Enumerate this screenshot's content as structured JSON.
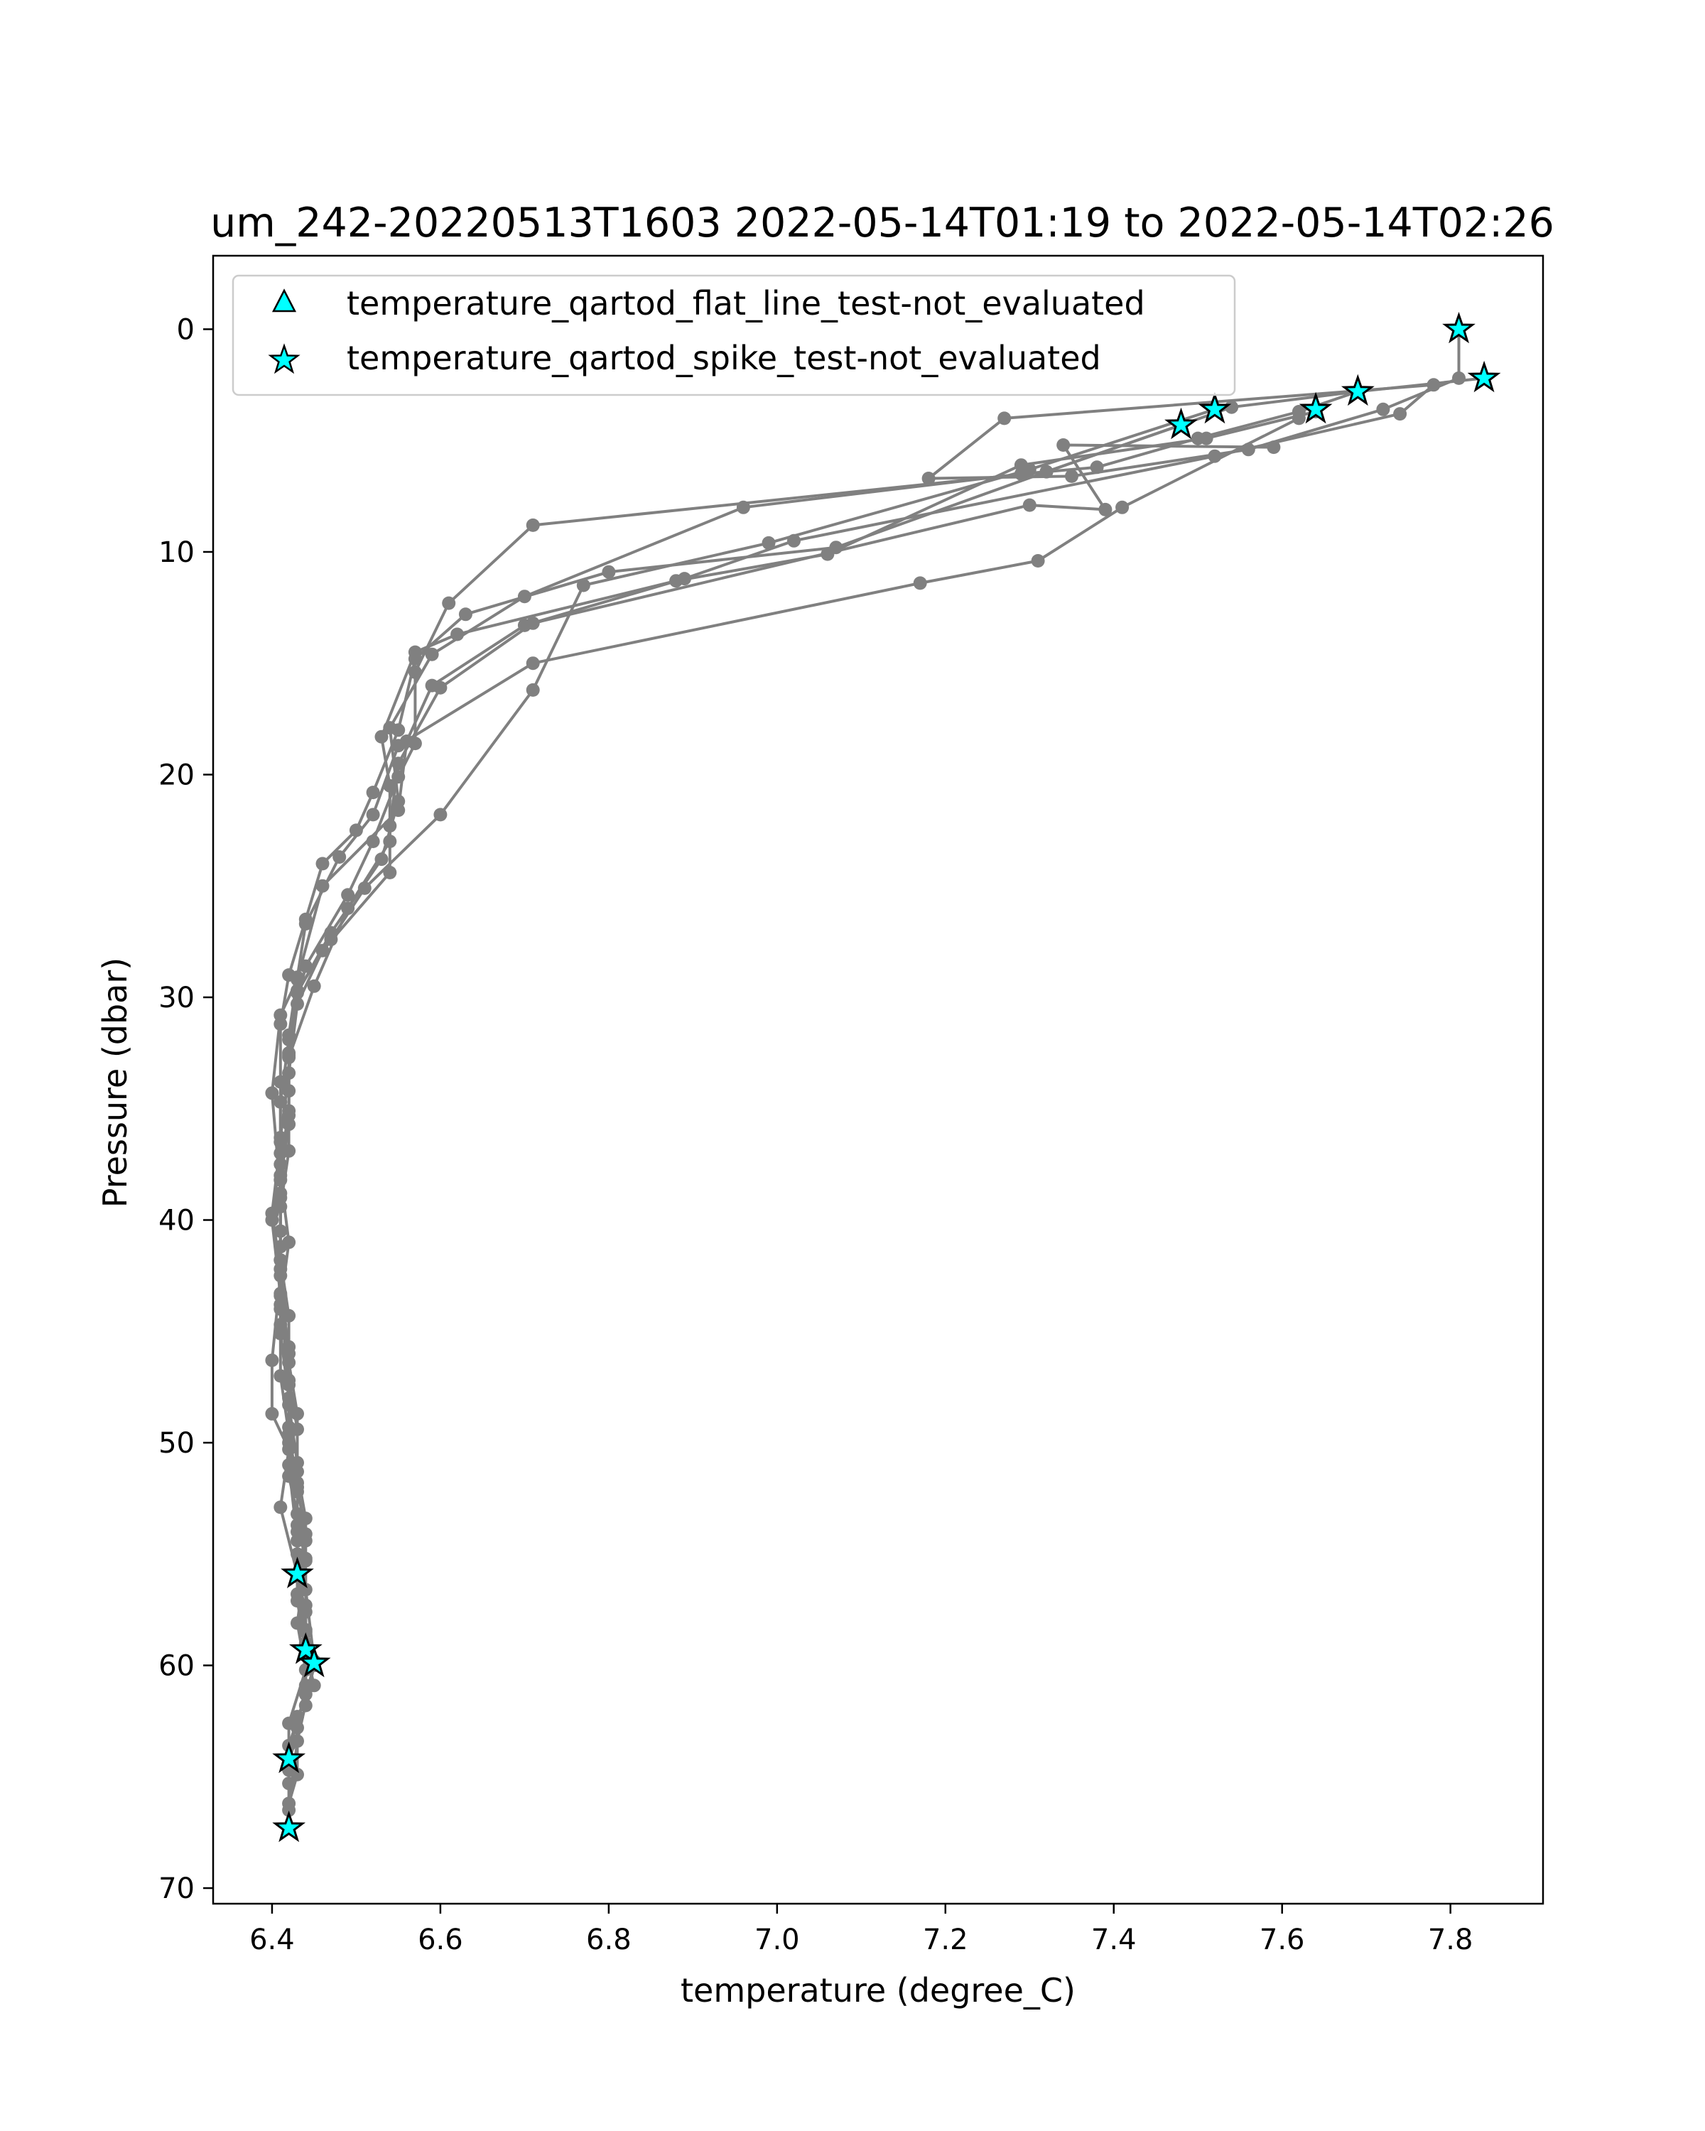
{
  "chart_data": {
    "type": "line",
    "title": "um_242-20220513T1603 2022-05-14T01:19 to 2022-05-14T02:26",
    "xlabel": "temperature (degree_C)",
    "ylabel": "Pressure (dbar)",
    "xlim": [
      6.33,
      7.91
    ],
    "ylim": [
      70.7,
      -3.3
    ],
    "y_inverted": true,
    "grid": false,
    "legend_position": "top-left",
    "xticks": [
      6.4,
      6.6,
      6.8,
      7.0,
      7.2,
      7.4,
      7.6,
      7.8
    ],
    "xtick_labels": [
      "6.4",
      "6.6",
      "6.8",
      "7.0",
      "7.2",
      "7.4",
      "7.6",
      "7.8"
    ],
    "yticks": [
      0,
      10,
      20,
      30,
      40,
      50,
      60,
      70
    ],
    "ytick_labels": [
      "0",
      "10",
      "20",
      "30",
      "40",
      "50",
      "60",
      "70"
    ],
    "colors": {
      "profile": "#808080",
      "marker_fill": "#00ffff",
      "marker_edge": "#000000",
      "axes": "#000000",
      "legend_border": "#cccccc"
    },
    "legend": [
      {
        "label": "temperature_qartod_flat_line_test-not_evaluated",
        "marker": "triangle"
      },
      {
        "label": "temperature_qartod_spike_test-not_evaluated",
        "marker": "star"
      }
    ],
    "series": [
      {
        "marker": "circle",
        "color": "#808080",
        "points": [
          [
            7.81,
            0.0
          ],
          [
            7.81,
            2.2
          ],
          [
            7.72,
            3.6
          ],
          [
            7.56,
            5.4
          ],
          [
            7.35,
            6.6
          ],
          [
            7.18,
            6.7
          ],
          [
            7.27,
            4.0
          ],
          [
            7.78,
            2.5
          ],
          [
            7.74,
            3.8
          ],
          [
            7.52,
            5.7
          ],
          [
            7.02,
            9.5
          ],
          [
            6.89,
            11.2
          ],
          [
            6.7,
            13.3
          ],
          [
            6.59,
            16.0
          ],
          [
            6.56,
            18.5
          ],
          [
            6.55,
            21.6
          ],
          [
            6.46,
            25.0
          ],
          [
            6.43,
            29.2
          ],
          [
            6.41,
            30.8
          ],
          [
            6.4,
            34.3
          ],
          [
            6.41,
            38.8
          ],
          [
            6.41,
            42.5
          ],
          [
            6.4,
            46.3
          ],
          [
            6.4,
            48.7
          ],
          [
            6.42,
            50.3
          ],
          [
            6.41,
            52.9
          ],
          [
            6.43,
            55.9
          ],
          [
            6.44,
            57.6
          ],
          [
            6.44,
            59.3
          ],
          [
            6.45,
            60.9
          ],
          [
            6.43,
            62.3
          ],
          [
            6.42,
            64.2
          ]
        ]
      },
      {
        "marker": "circle",
        "color": "#808080",
        "points": [
          [
            7.84,
            2.2
          ],
          [
            7.69,
            2.8
          ],
          [
            7.54,
            3.5
          ],
          [
            7.48,
            4.3
          ],
          [
            7.32,
            6.4
          ],
          [
            7.07,
            9.8
          ],
          [
            6.8,
            10.9
          ],
          [
            6.63,
            12.8
          ],
          [
            6.57,
            14.8
          ],
          [
            6.55,
            18.0
          ],
          [
            6.52,
            20.8
          ],
          [
            6.5,
            22.5
          ],
          [
            6.46,
            24.0
          ],
          [
            6.44,
            26.5
          ],
          [
            6.42,
            29.0
          ],
          [
            6.41,
            31.2
          ],
          [
            6.41,
            33.8
          ],
          [
            6.41,
            36.5
          ],
          [
            6.4,
            39.7
          ],
          [
            6.41,
            42.2
          ],
          [
            6.41,
            44.7
          ],
          [
            6.41,
            47.0
          ],
          [
            6.42,
            49.6
          ],
          [
            6.43,
            51.8
          ],
          [
            6.43,
            54.0
          ],
          [
            6.43,
            56.0
          ],
          [
            6.44,
            58.4
          ],
          [
            6.45,
            60.0
          ],
          [
            6.44,
            61.3
          ],
          [
            6.42,
            63.6
          ],
          [
            6.42,
            65.3
          ],
          [
            6.42,
            67.3
          ]
        ]
      },
      {
        "marker": "circle",
        "color": "#808080",
        "points": [
          [
            7.64,
            3.7
          ],
          [
            7.51,
            4.9
          ],
          [
            7.29,
            6.1
          ],
          [
            7.06,
            10.1
          ],
          [
            6.88,
            11.3
          ],
          [
            6.62,
            13.7
          ],
          [
            6.57,
            14.5
          ],
          [
            6.53,
            18.3
          ],
          [
            6.54,
            20.5
          ],
          [
            6.54,
            23.0
          ],
          [
            6.49,
            26.0
          ],
          [
            6.45,
            29.5
          ],
          [
            6.42,
            32.7
          ],
          [
            6.42,
            35.1
          ],
          [
            6.41,
            37.5
          ],
          [
            6.41,
            40.5
          ],
          [
            6.41,
            43.3
          ],
          [
            6.42,
            45.7
          ],
          [
            6.42,
            48.3
          ],
          [
            6.43,
            50.9
          ],
          [
            6.43,
            53.7
          ],
          [
            6.44,
            55.2
          ],
          [
            6.44,
            57.3
          ],
          [
            6.44,
            59.5
          ],
          [
            6.44,
            60.9
          ],
          [
            6.43,
            62.8
          ],
          [
            6.43,
            64.9
          ],
          [
            6.42,
            66.2
          ]
        ]
      },
      {
        "marker": "circle",
        "color": "#808080",
        "points": [
          [
            7.69,
            2.8
          ],
          [
            7.62,
            3.7
          ],
          [
            7.5,
            4.9
          ],
          [
            7.38,
            6.2
          ],
          [
            7.29,
            6.5
          ],
          [
            6.96,
            8.0
          ],
          [
            6.7,
            12.0
          ],
          [
            6.59,
            14.6
          ],
          [
            6.54,
            17.9
          ],
          [
            6.55,
            21.2
          ],
          [
            6.53,
            23.8
          ],
          [
            6.47,
            27.1
          ],
          [
            6.43,
            29.8
          ],
          [
            6.42,
            32.5
          ],
          [
            6.42,
            35.7
          ],
          [
            6.41,
            38.2
          ],
          [
            6.41,
            41.2
          ],
          [
            6.41,
            44.0
          ],
          [
            6.42,
            46.4
          ],
          [
            6.43,
            48.7
          ],
          [
            6.43,
            51.3
          ],
          [
            6.44,
            53.4
          ],
          [
            6.44,
            55.3
          ],
          [
            6.43,
            58.1
          ],
          [
            6.44,
            60.2
          ],
          [
            6.42,
            62.6
          ],
          [
            6.42,
            64.7
          ]
        ]
      },
      {
        "marker": "circle",
        "color": "#808080",
        "points": [
          [
            7.62,
            4.0
          ],
          [
            7.41,
            8.0
          ],
          [
            7.31,
            10.4
          ],
          [
            7.17,
            11.4
          ],
          [
            6.71,
            15.0
          ],
          [
            6.55,
            18.7
          ],
          [
            6.52,
            21.8
          ],
          [
            6.48,
            23.7
          ],
          [
            6.44,
            26.7
          ],
          [
            6.43,
            29.1
          ],
          [
            6.42,
            31.7
          ],
          [
            6.42,
            34.2
          ],
          [
            6.42,
            36.9
          ],
          [
            6.41,
            39.4
          ],
          [
            6.41,
            41.8
          ],
          [
            6.42,
            44.3
          ],
          [
            6.42,
            47.4
          ],
          [
            6.42,
            50.0
          ],
          [
            6.43,
            52.2
          ],
          [
            6.43,
            55.0
          ],
          [
            6.44,
            56.6
          ],
          [
            6.45,
            59.8
          ]
        ]
      },
      {
        "marker": "circle",
        "color": "#808080",
        "points": [
          [
            7.59,
            5.3
          ],
          [
            7.34,
            5.2
          ],
          [
            7.39,
            8.1
          ],
          [
            7.3,
            7.9
          ],
          [
            6.71,
            13.2
          ],
          [
            6.6,
            16.1
          ],
          [
            6.55,
            19.5
          ],
          [
            6.54,
            22.3
          ],
          [
            6.54,
            24.4
          ],
          [
            6.46,
            27.9
          ],
          [
            6.43,
            30.3
          ],
          [
            6.42,
            33.4
          ],
          [
            6.41,
            36.3
          ],
          [
            6.41,
            39.0
          ],
          [
            6.41,
            41.8
          ],
          [
            6.41,
            45.1
          ],
          [
            6.42,
            48.0
          ],
          [
            6.42,
            51.0
          ],
          [
            6.43,
            54.4
          ],
          [
            6.43,
            56.8
          ],
          [
            6.44,
            59.0
          ],
          [
            6.44,
            61.8
          ],
          [
            6.42,
            64.3
          ]
        ]
      },
      {
        "marker": "circle",
        "color": "#808080",
        "points": [
          [
            7.48,
            4.3
          ],
          [
            7.32,
            6.4
          ],
          [
            6.71,
            8.8
          ],
          [
            6.61,
            12.3
          ],
          [
            6.57,
            15.4
          ],
          [
            6.57,
            18.6
          ],
          [
            6.55,
            20.1
          ],
          [
            6.52,
            23.0
          ],
          [
            6.49,
            25.4
          ],
          [
            6.44,
            28.6
          ],
          [
            6.42,
            31.9
          ],
          [
            6.41,
            34.7
          ],
          [
            6.41,
            37.0
          ],
          [
            6.4,
            40.0
          ],
          [
            6.41,
            43.4
          ],
          [
            6.42,
            46.0
          ],
          [
            6.42,
            49.3
          ],
          [
            6.42,
            51.5
          ],
          [
            6.43,
            53.2
          ],
          [
            6.44,
            54.4
          ],
          [
            6.43,
            57.1
          ],
          [
            6.44,
            59.3
          ]
        ]
      },
      {
        "marker": "circle",
        "color": "#808080",
        "points": [
          [
            7.52,
            3.6
          ],
          [
            7.3,
            6.3
          ],
          [
            6.99,
            9.6
          ],
          [
            6.77,
            11.5
          ],
          [
            6.71,
            16.2
          ],
          [
            6.6,
            21.8
          ],
          [
            6.51,
            25.1
          ],
          [
            6.47,
            27.4
          ],
          [
            6.43,
            29.7
          ],
          [
            6.42,
            32.6
          ],
          [
            6.42,
            35.3
          ],
          [
            6.41,
            38.0
          ],
          [
            6.42,
            41.0
          ],
          [
            6.41,
            43.8
          ],
          [
            6.42,
            47.2
          ],
          [
            6.43,
            49.4
          ],
          [
            6.43,
            52.0
          ],
          [
            6.44,
            54.1
          ],
          [
            6.43,
            56.0
          ],
          [
            6.44,
            58.5
          ],
          [
            6.45,
            60.0
          ],
          [
            6.43,
            63.4
          ],
          [
            6.42,
            66.5
          ],
          [
            6.42,
            67.3
          ]
        ]
      }
    ],
    "spike_test_not_evaluated_points": [
      [
        7.81,
        0.0
      ],
      [
        7.84,
        2.2
      ],
      [
        7.69,
        2.8
      ],
      [
        7.64,
        3.6
      ],
      [
        7.52,
        3.6
      ],
      [
        7.48,
        4.3
      ],
      [
        6.43,
        55.9
      ],
      [
        6.44,
        59.3
      ],
      [
        6.45,
        59.9
      ],
      [
        6.42,
        64.2
      ],
      [
        6.42,
        67.3
      ]
    ],
    "flat_line_test_not_evaluated_points": []
  }
}
